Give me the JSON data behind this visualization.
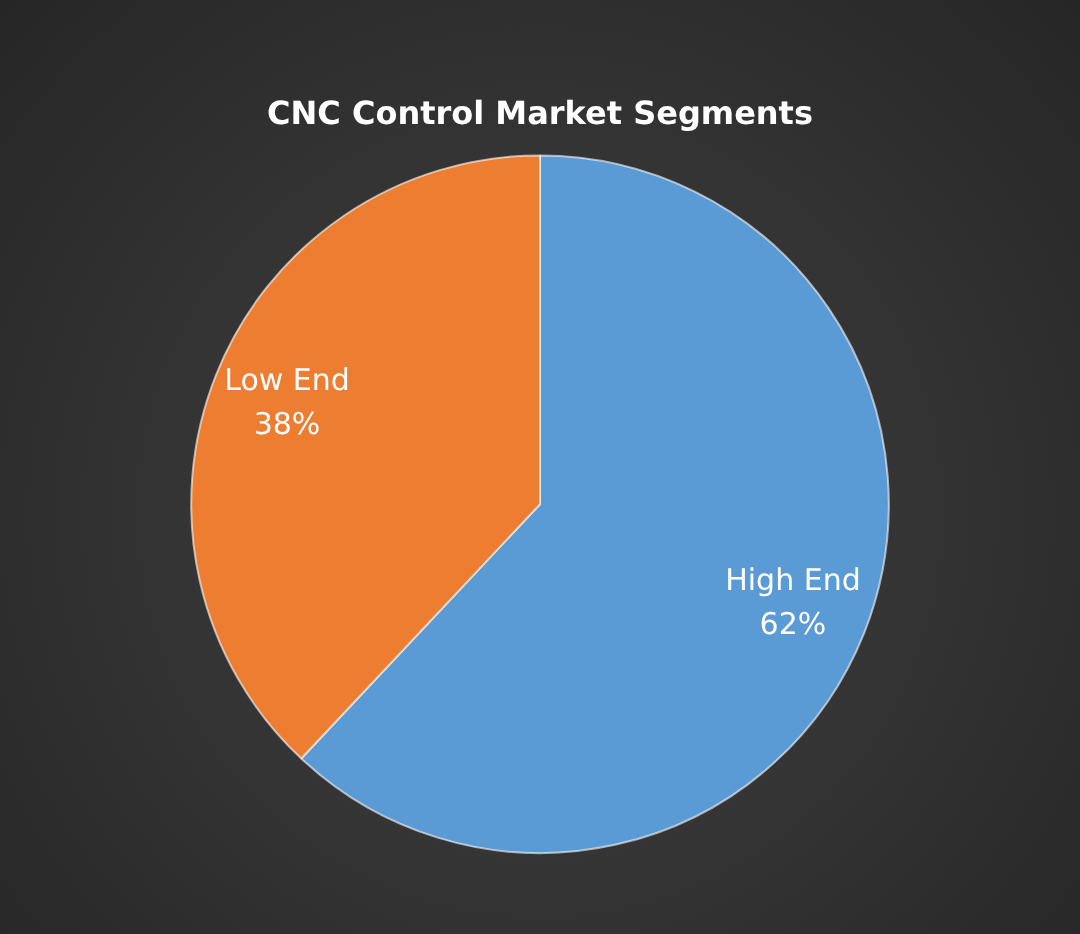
{
  "chart_data": {
    "type": "pie",
    "title": "CNC Control Market Segments",
    "categories": [
      "High End",
      "Low End"
    ],
    "values": [
      62,
      38
    ],
    "value_labels": [
      "62%",
      "38%"
    ],
    "colors": [
      "#5b9bd5",
      "#ed7d31"
    ],
    "legend": false
  }
}
